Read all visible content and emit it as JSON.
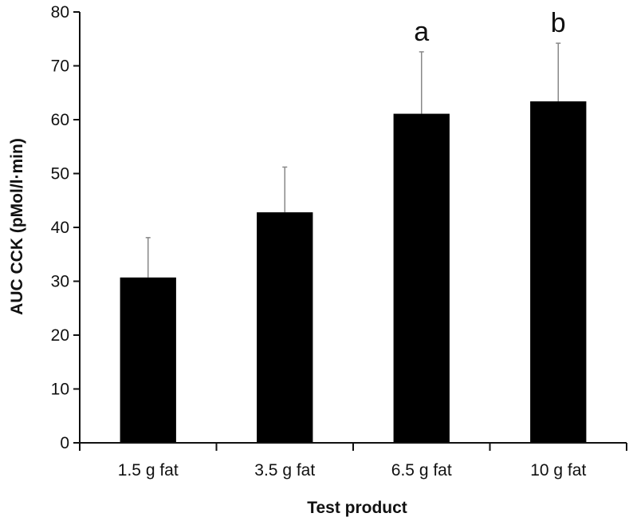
{
  "chart_data": {
    "type": "bar",
    "title": "",
    "xlabel": "Test product",
    "ylabel": "AUC CCK (pMol/l·min)",
    "categories": [
      "1.5 g fat",
      "3.5 g fat",
      "6.5 g fat",
      "10 g fat"
    ],
    "values": [
      30.7,
      42.8,
      61.1,
      63.4
    ],
    "error_upper": [
      38.1,
      51.2,
      72.6,
      74.2
    ],
    "annotations": [
      "",
      "",
      "a",
      "b"
    ],
    "ylim": [
      0,
      80
    ],
    "yticks": [
      "0",
      "10",
      "20",
      "30",
      "40",
      "50",
      "60",
      "70",
      "80"
    ],
    "grid": false,
    "legend": "none",
    "bar_color": "#000000",
    "error_color": "#888888"
  }
}
